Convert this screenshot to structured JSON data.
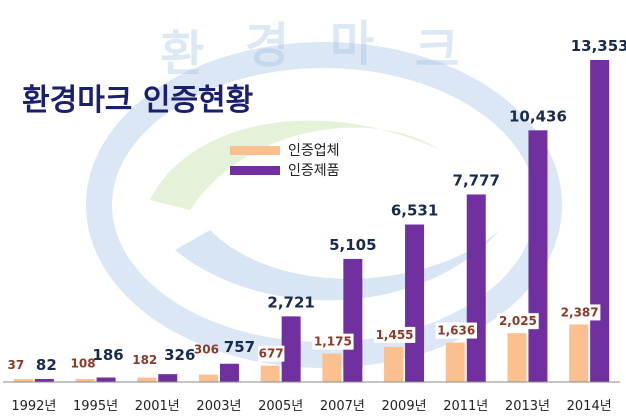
{
  "chart_data": {
    "type": "bar",
    "title": "환경마크 인증현황",
    "categories": [
      "1992년",
      "1995년",
      "2001년",
      "2003년",
      "2005년",
      "2007년",
      "2009년",
      "2011년",
      "2013년",
      "2014년"
    ],
    "series": [
      {
        "name": "인증업체",
        "color": "#fbc08e",
        "values": [
          37,
          108,
          182,
          306,
          677,
          1175,
          1455,
          1636,
          2025,
          2387
        ],
        "labels": [
          "37",
          "108",
          "182",
          "306",
          "677",
          "1,175",
          "1,455",
          "1,636",
          "2,025",
          "2,387"
        ]
      },
      {
        "name": "인증제품",
        "color": "#7030a0",
        "values": [
          82,
          186,
          326,
          757,
          2721,
          5105,
          6531,
          7777,
          10436,
          13353
        ],
        "labels": [
          "82",
          "186",
          "326",
          "757",
          "2,721",
          "5,105",
          "6,531",
          "7,777",
          "10,436",
          "13,353"
        ]
      }
    ],
    "ylim": [
      0,
      14000
    ],
    "grid": false,
    "legend": "upper-left",
    "watermark": {
      "text": [
        "환",
        "경",
        "마",
        "크"
      ],
      "colors": {
        "blue": "#4a86c8",
        "green": "#8cbf5a"
      }
    }
  }
}
